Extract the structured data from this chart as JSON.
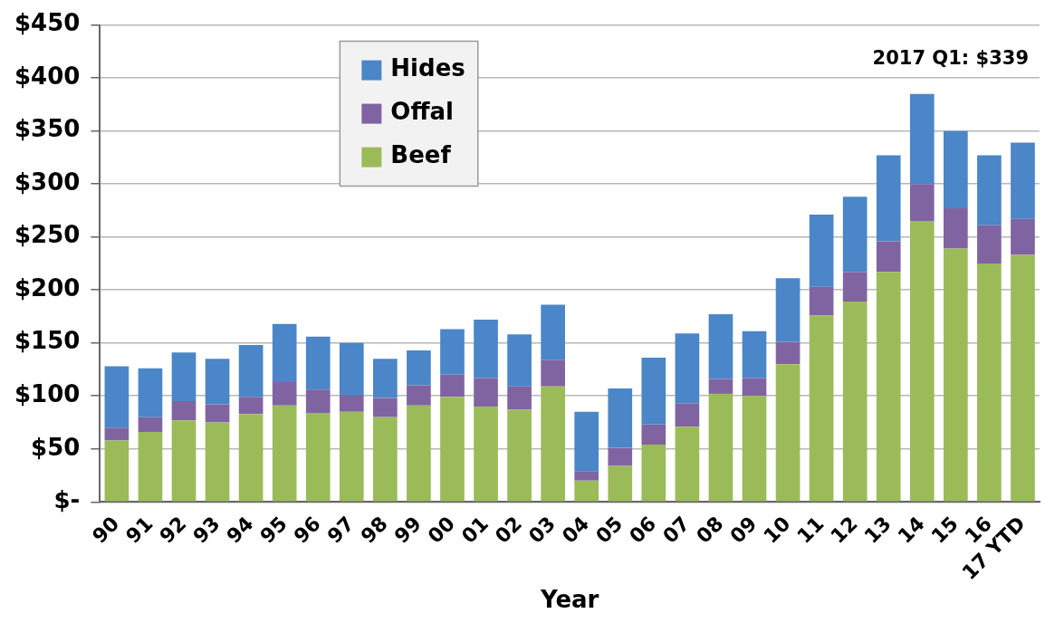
{
  "chart_data": {
    "type": "bar",
    "stacked": true,
    "xlabel": "Year",
    "categories": [
      "90",
      "91",
      "92",
      "93",
      "94",
      "95",
      "96",
      "97",
      "98",
      "99",
      "00",
      "01",
      "02",
      "03",
      "04",
      "05",
      "06",
      "07",
      "08",
      "09",
      "10",
      "11",
      "12",
      "13",
      "14",
      "15",
      "16",
      "17 YTD"
    ],
    "series": [
      {
        "name": "Beef",
        "color": "#9bbb59",
        "values": [
          58,
          66,
          77,
          75,
          83,
          91,
          84,
          85,
          80,
          91,
          99,
          90,
          87,
          109,
          20,
          34,
          54,
          71,
          102,
          100,
          130,
          176,
          189,
          217,
          265,
          239,
          225,
          233
        ]
      },
      {
        "name": "Offal",
        "color": "#8064a2",
        "values": [
          12,
          14,
          18,
          17,
          16,
          22,
          22,
          16,
          18,
          19,
          21,
          27,
          22,
          25,
          9,
          17,
          19,
          22,
          14,
          17,
          21,
          27,
          28,
          29,
          35,
          38,
          36,
          34
        ]
      },
      {
        "name": "Hides",
        "color": "#4a86c8",
        "values": [
          58,
          46,
          46,
          43,
          49,
          55,
          50,
          49,
          37,
          33,
          43,
          55,
          49,
          52,
          56,
          56,
          63,
          66,
          61,
          44,
          60,
          68,
          71,
          81,
          85,
          73,
          66,
          72
        ]
      }
    ],
    "ylim": [
      0,
      450
    ],
    "yticks": [
      {
        "value": 0,
        "label": "$-"
      },
      {
        "value": 50,
        "label": "$50"
      },
      {
        "value": 100,
        "label": "$100"
      },
      {
        "value": 150,
        "label": "$150"
      },
      {
        "value": 200,
        "label": "$200"
      },
      {
        "value": 250,
        "label": "$250"
      },
      {
        "value": 300,
        "label": "$300"
      },
      {
        "value": 350,
        "label": "$350"
      },
      {
        "value": 400,
        "label": "$400"
      },
      {
        "value": 450,
        "label": "$450"
      }
    ],
    "grid": "y",
    "legend": "top left",
    "annotations": [
      "2017 Q1: $339"
    ]
  }
}
